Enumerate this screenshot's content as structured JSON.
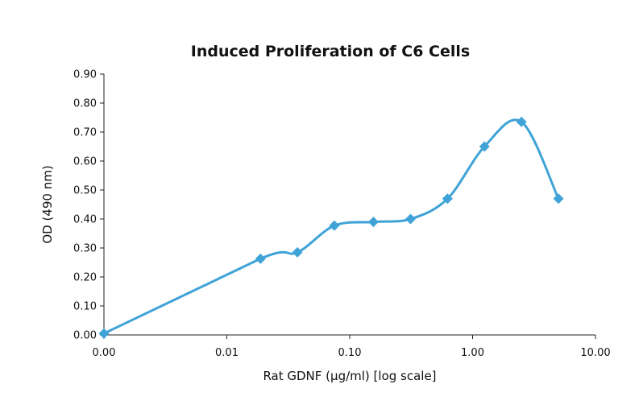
{
  "chart_data": {
    "type": "line",
    "title": "Induced Proliferation of C6 Cells",
    "xlabel": "Rat GDNF (µg/ml) [log scale]",
    "ylabel": "OD (490 nm)",
    "x_scale": "log",
    "x_tick_labels": [
      "0.00",
      "0.01",
      "0.10",
      "1.00",
      "10.00"
    ],
    "y_tick_labels": [
      "0.00",
      "0.10",
      "0.20",
      "0.30",
      "0.40",
      "0.50",
      "0.60",
      "0.70",
      "0.80",
      "0.90"
    ],
    "ylim": [
      0,
      0.9
    ],
    "grid": false,
    "legend": "none",
    "line_style": "smoothed",
    "marker": "diamond",
    "color": "#3fa3d7",
    "series": [
      {
        "x": [
          0.001,
          0.0188,
          0.0375,
          0.075,
          0.156,
          0.3125,
          0.625,
          1.25,
          2.5,
          5.0
        ],
        "y": [
          0.005,
          0.263,
          0.285,
          0.377,
          0.39,
          0.4,
          0.47,
          0.65,
          0.735,
          0.47
        ]
      }
    ]
  }
}
